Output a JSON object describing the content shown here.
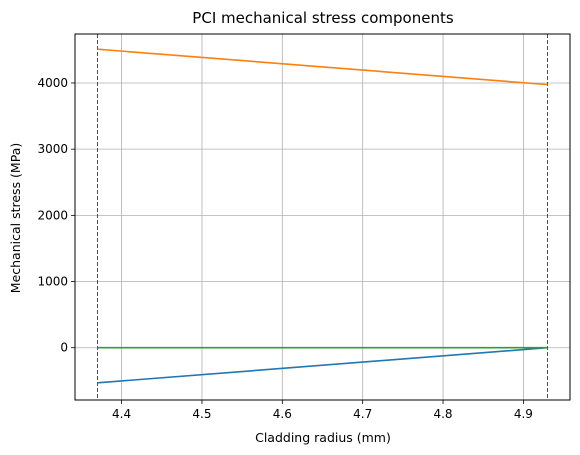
{
  "chart_data": {
    "type": "line",
    "title": "PCI mechanical stress components",
    "xlabel": "Cladding radius (mm)",
    "ylabel": "Mechanical stress (MPa)",
    "xlim": [
      4.342,
      4.958
    ],
    "ylim": [
      -790,
      4740
    ],
    "xticks": [
      4.4,
      4.5,
      4.6,
      4.7,
      4.8,
      4.9
    ],
    "xtick_labels": [
      "4.4",
      "4.5",
      "4.6",
      "4.7",
      "4.8",
      "4.9"
    ],
    "yticks": [
      0,
      1000,
      2000,
      3000,
      4000
    ],
    "ytick_labels": [
      "0",
      "1000",
      "2000",
      "3000",
      "4000"
    ],
    "grid": true,
    "series": [
      {
        "color": "#1f77b4",
        "x": [
          4.37,
          4.93
        ],
        "y": [
          -530,
          0
        ]
      },
      {
        "color": "#ff7f0e",
        "x": [
          4.37,
          4.93
        ],
        "y": [
          4510,
          3975
        ]
      },
      {
        "color": "#2ca02c",
        "x": [
          4.37,
          4.93
        ],
        "y": [
          0,
          0
        ]
      }
    ],
    "vlines": [
      {
        "x": 4.37,
        "color": "#ff0000",
        "style": "dashed"
      },
      {
        "x": 4.93,
        "color": "#ff0000",
        "style": "dashed"
      }
    ]
  }
}
